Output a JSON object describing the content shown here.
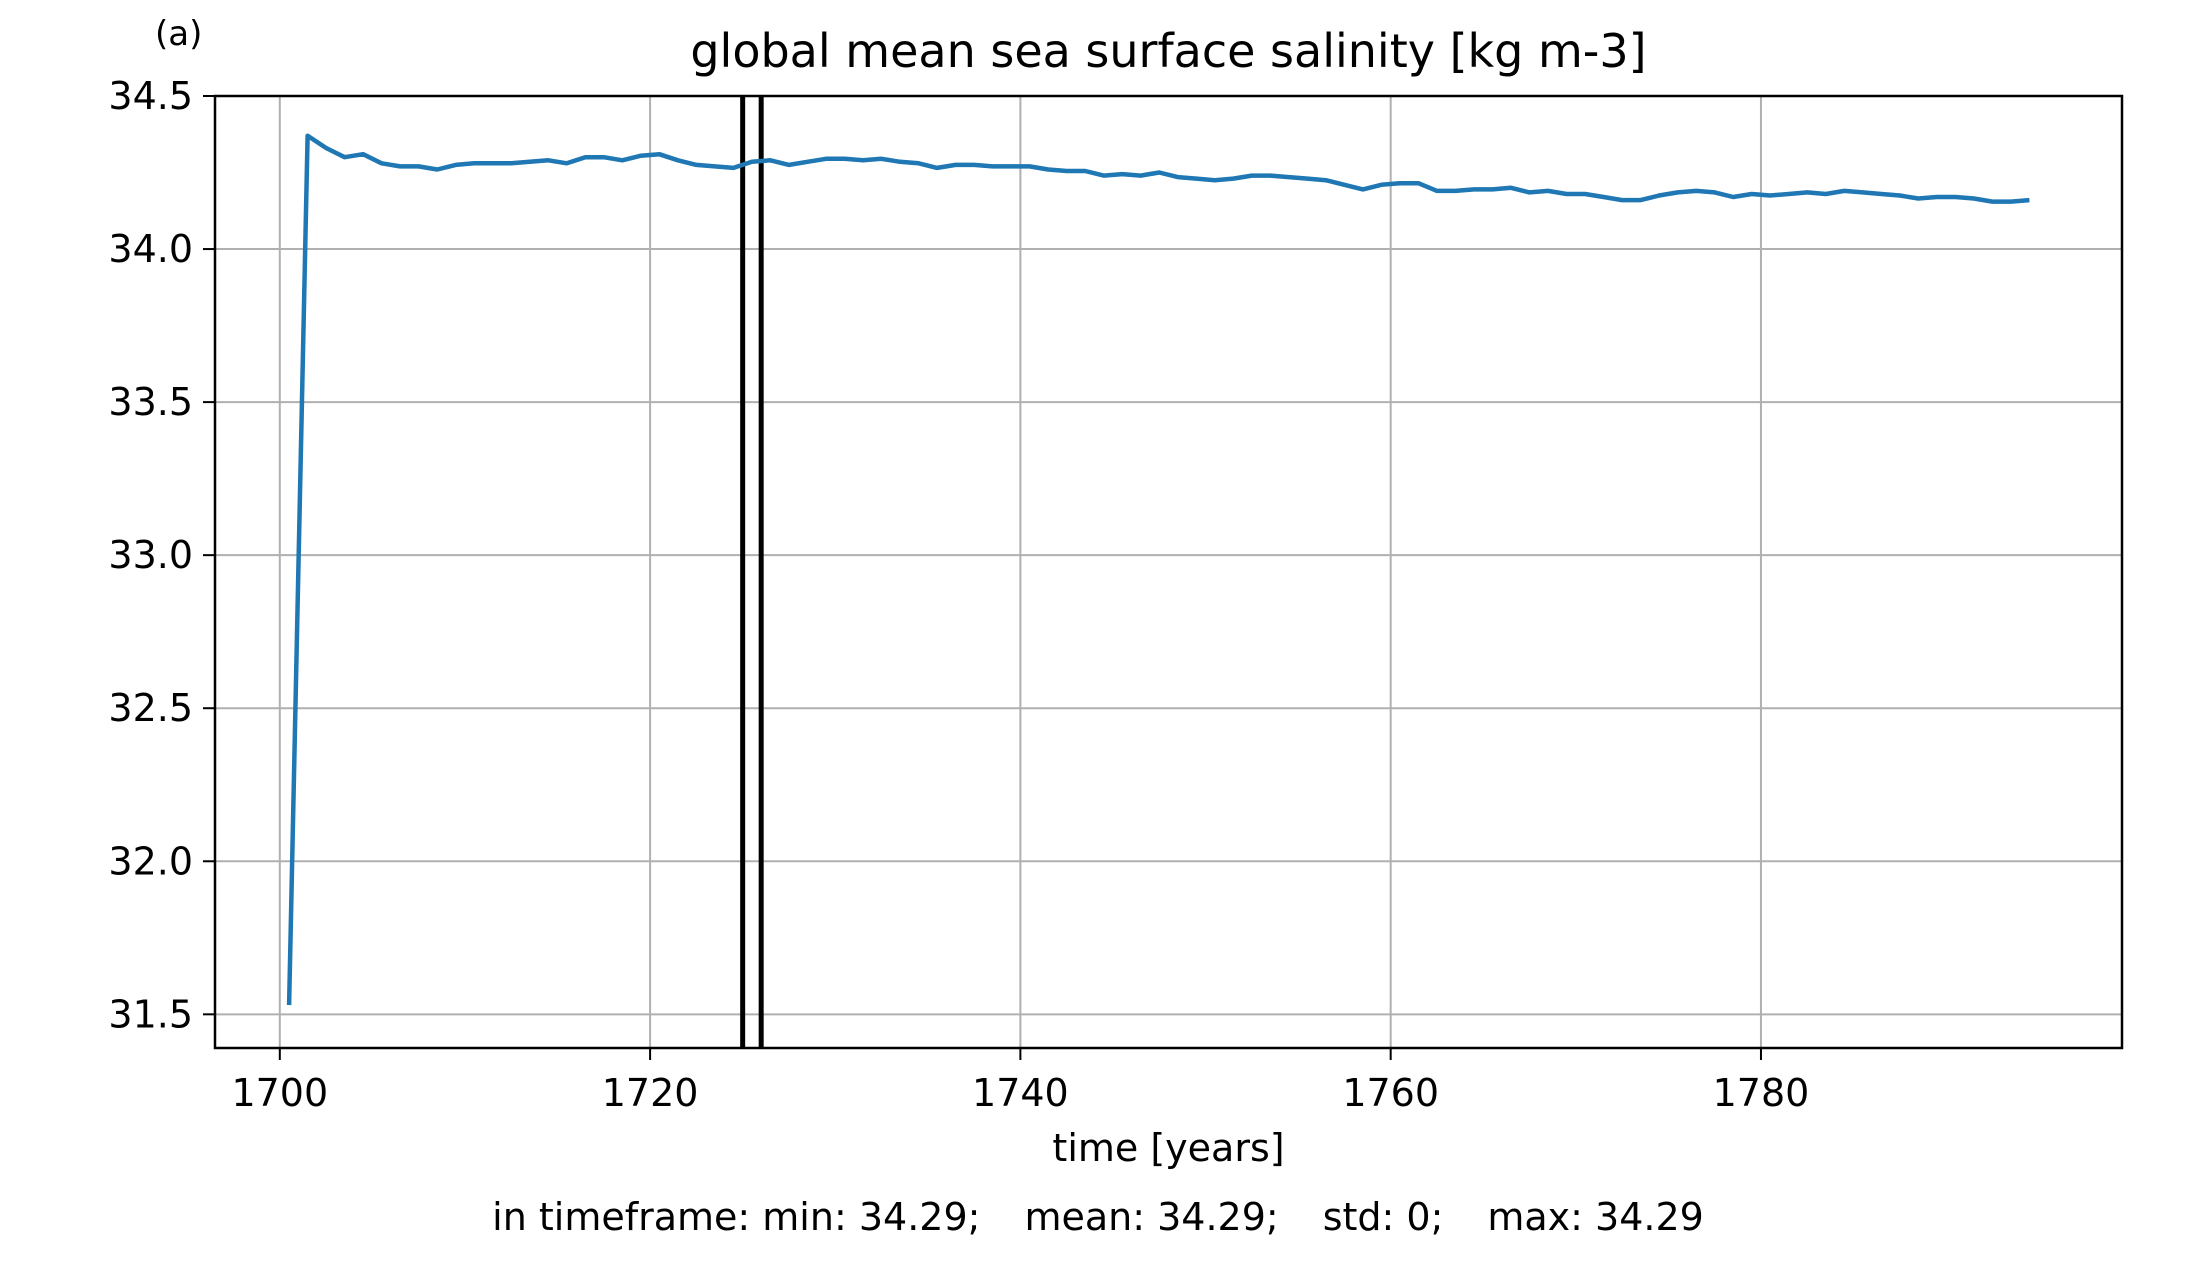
{
  "panel_label": "(a)",
  "stats": {
    "min": "in timeframe: min: 34.29;",
    "mean": "mean: 34.29;",
    "std": "std: 0;",
    "max": "max: 34.29"
  },
  "colors": {
    "line": "#1f77b4",
    "vline": "#000000",
    "grid": "#b0b0b0"
  },
  "chart_data": {
    "type": "line",
    "title": "global mean sea surface salinity [kg m-3]",
    "xlabel": "time [years]",
    "ylabel": "",
    "xlim": [
      1696.5,
      1799.5
    ],
    "ylim": [
      31.39,
      34.5
    ],
    "xticks": [
      1700,
      1720,
      1740,
      1760,
      1780
    ],
    "yticks": [
      31.5,
      32.0,
      32.5,
      33.0,
      33.5,
      34.0,
      34.5
    ],
    "grid": true,
    "vlines": [
      1725.0,
      1726.0
    ],
    "series": [
      {
        "x": [
          1700.5,
          1701.5,
          1702.5,
          1703.5,
          1704.5,
          1705.5,
          1706.5,
          1707.5,
          1708.5,
          1709.5,
          1710.5,
          1711.5,
          1712.5,
          1713.5,
          1714.5,
          1715.5,
          1716.5,
          1717.5,
          1718.5,
          1719.5,
          1720.5,
          1721.5,
          1722.5,
          1723.5,
          1724.5,
          1725.5,
          1726.5,
          1727.5,
          1728.5,
          1729.5,
          1730.5,
          1731.5,
          1732.5,
          1733.5,
          1734.5,
          1735.5,
          1736.5,
          1737.5,
          1738.5,
          1739.5,
          1740.5,
          1741.5,
          1742.5,
          1743.5,
          1744.5,
          1745.5,
          1746.5,
          1747.5,
          1748.5,
          1749.5,
          1750.5,
          1751.5,
          1752.5,
          1753.5,
          1754.5,
          1755.5,
          1756.5,
          1757.5,
          1758.5,
          1759.5,
          1760.5,
          1761.5,
          1762.5,
          1763.5,
          1764.5,
          1765.5,
          1766.5,
          1767.5,
          1768.5,
          1769.5,
          1770.5,
          1771.5,
          1772.5,
          1773.5,
          1774.5,
          1775.5,
          1776.5,
          1777.5,
          1778.5,
          1779.5,
          1780.5,
          1781.5,
          1782.5,
          1783.5,
          1784.5,
          1785.5,
          1786.5,
          1787.5,
          1788.5,
          1789.5,
          1790.5,
          1791.5,
          1792.5,
          1793.5,
          1794.5
        ],
        "values": [
          31.53,
          34.37,
          34.33,
          34.3,
          34.31,
          34.28,
          34.27,
          34.27,
          34.26,
          34.275,
          34.28,
          34.28,
          34.28,
          34.285,
          34.29,
          34.28,
          34.3,
          34.3,
          34.29,
          34.305,
          34.31,
          34.29,
          34.275,
          34.27,
          34.265,
          34.285,
          34.29,
          34.275,
          34.285,
          34.295,
          34.295,
          34.29,
          34.295,
          34.285,
          34.28,
          34.265,
          34.275,
          34.275,
          34.27,
          34.27,
          34.27,
          34.26,
          34.255,
          34.255,
          34.24,
          34.245,
          34.24,
          34.25,
          34.235,
          34.23,
          34.225,
          34.23,
          34.24,
          34.24,
          34.235,
          34.23,
          34.225,
          34.21,
          34.195,
          34.21,
          34.215,
          34.215,
          34.19,
          34.19,
          34.195,
          34.195,
          34.2,
          34.185,
          34.19,
          34.18,
          34.18,
          34.17,
          34.16,
          34.16,
          34.175,
          34.185,
          34.19,
          34.185,
          34.17,
          34.18,
          34.175,
          34.18,
          34.185,
          34.18,
          34.19,
          34.185,
          34.18,
          34.175,
          34.165,
          34.17,
          34.17,
          34.165,
          34.155,
          34.155,
          34.16
        ]
      }
    ]
  }
}
